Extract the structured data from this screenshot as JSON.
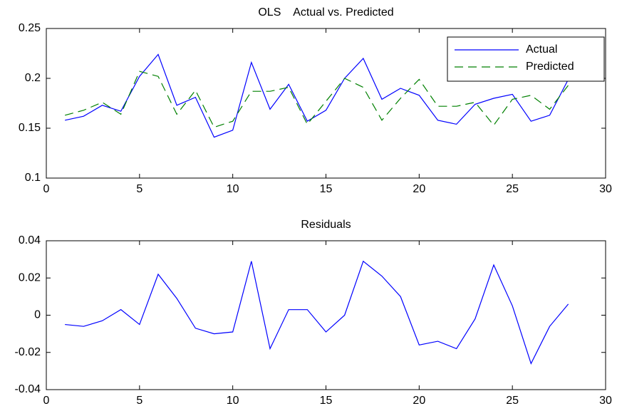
{
  "chart_data": [
    {
      "type": "line",
      "title": "OLS    Actual vs. Predicted",
      "x": [
        1,
        2,
        3,
        4,
        5,
        6,
        7,
        8,
        9,
        10,
        11,
        12,
        13,
        14,
        15,
        16,
        17,
        18,
        19,
        20,
        21,
        22,
        23,
        24,
        25,
        26,
        27,
        28
      ],
      "series": [
        {
          "name": "Actual",
          "color": "#0000ff",
          "linestyle": "solid",
          "values": [
            0.158,
            0.162,
            0.173,
            0.167,
            0.202,
            0.224,
            0.173,
            0.181,
            0.141,
            0.148,
            0.216,
            0.169,
            0.194,
            0.157,
            0.168,
            0.2,
            0.22,
            0.179,
            0.19,
            0.183,
            0.158,
            0.154,
            0.174,
            0.18,
            0.184,
            0.157,
            0.163,
            0.199
          ]
        },
        {
          "name": "Predicted",
          "color": "#008000",
          "linestyle": "dashed",
          "values": [
            0.163,
            0.168,
            0.176,
            0.164,
            0.207,
            0.202,
            0.164,
            0.188,
            0.151,
            0.157,
            0.187,
            0.187,
            0.191,
            0.154,
            0.177,
            0.2,
            0.191,
            0.158,
            0.18,
            0.199,
            0.172,
            0.172,
            0.176,
            0.153,
            0.179,
            0.183,
            0.169,
            0.193
          ]
        }
      ],
      "xlim": [
        0,
        30
      ],
      "xticks": [
        0,
        5,
        10,
        15,
        20,
        25,
        30
      ],
      "ylim": [
        0.1,
        0.25
      ],
      "yticks": [
        0.1,
        0.15,
        0.2,
        0.25
      ],
      "legend": "upper right"
    },
    {
      "type": "line",
      "title": "Residuals",
      "x": [
        1,
        2,
        3,
        4,
        5,
        6,
        7,
        8,
        9,
        10,
        11,
        12,
        13,
        14,
        15,
        16,
        17,
        18,
        19,
        20,
        21,
        22,
        23,
        24,
        25,
        26,
        27,
        28
      ],
      "series": [
        {
          "color": "#0000ff",
          "linestyle": "solid",
          "values": [
            -0.005,
            -0.006,
            -0.003,
            0.003,
            -0.005,
            0.022,
            0.009,
            -0.007,
            -0.01,
            -0.009,
            0.029,
            -0.018,
            0.003,
            0.003,
            -0.009,
            0.0,
            0.029,
            0.021,
            0.01,
            -0.016,
            -0.014,
            -0.018,
            -0.002,
            0.027,
            0.005,
            -0.026,
            -0.006,
            0.006
          ]
        }
      ],
      "xlim": [
        0,
        30
      ],
      "xticks": [
        0,
        5,
        10,
        15,
        20,
        25,
        30
      ],
      "ylim": [
        -0.04,
        0.04
      ],
      "yticks": [
        -0.04,
        -0.02,
        0,
        0.02,
        0.04
      ]
    }
  ]
}
